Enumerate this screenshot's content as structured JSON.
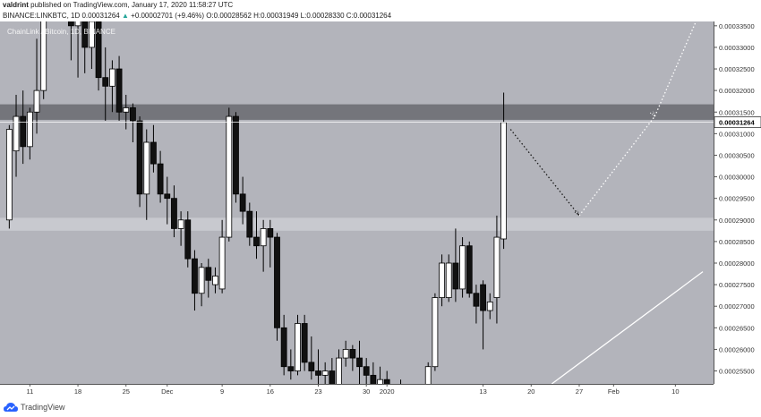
{
  "header": {
    "author": "valdrint",
    "published_text": "published on TradingView.com, January 17, 2020 11:58:27 UTC",
    "symbol": "BINANCE:LINKBTC, 1D",
    "last": "0.00031264",
    "change_arrow": "▲",
    "change": "+0.00002701 (+9.46%)",
    "ohlc": "O:0.00028562 H:0.00031949 L:0.00028330 C:0.00031264"
  },
  "watermark": "ChainLink / Bitcoin, 1D, BINANCE",
  "footer": {
    "brand": "TradingView"
  },
  "colors": {
    "background": "#b3b4bb",
    "up": "#ffffff",
    "down": "#111111",
    "zone_dark": "#6d6e74",
    "zone_light": "#cfd0d6"
  },
  "chart_data": {
    "type": "candlestick",
    "ylim": [
      0.000252,
      0.000336
    ],
    "y_ticks": [
      "0.00033500",
      "0.00033000",
      "0.00032500",
      "0.00032000",
      "0.00031500",
      "0.00031000",
      "0.00030500",
      "0.00030000",
      "0.00029500",
      "0.00029000",
      "0.00028500",
      "0.00028000",
      "0.00027500",
      "0.00027000",
      "0.00026500",
      "0.00026000",
      "0.00025500"
    ],
    "x_ticks": [
      {
        "label": "11",
        "day": 3
      },
      {
        "label": "18",
        "day": 10
      },
      {
        "label": "25",
        "day": 17
      },
      {
        "label": "Dec",
        "day": 23
      },
      {
        "label": "9",
        "day": 31
      },
      {
        "label": "16",
        "day": 38
      },
      {
        "label": "23",
        "day": 45
      },
      {
        "label": "30",
        "day": 52
      },
      {
        "label": "2020",
        "day": 55
      },
      {
        "label": "13",
        "day": 69
      },
      {
        "label": "20",
        "day": 76
      },
      {
        "label": "27",
        "day": 83
      },
      {
        "label": "Feb",
        "day": 88
      },
      {
        "label": "10",
        "day": 97
      }
    ],
    "last_price": {
      "label": "0.00031264",
      "value": 0.00031264
    },
    "zones": [
      {
        "from": 0.0003132,
        "to": 0.0003168,
        "style": "dark"
      },
      {
        "from": 0.0002875,
        "to": 0.0002905,
        "style": "light"
      }
    ],
    "candles": [
      {
        "day": 0,
        "o": 0.00029,
        "h": 0.000312,
        "l": 0.000288,
        "c": 0.000311
      },
      {
        "day": 1,
        "o": 0.000306,
        "h": 0.000319,
        "l": 0.0003,
        "c": 0.000314
      },
      {
        "day": 2,
        "o": 0.000314,
        "h": 0.00032,
        "l": 0.000303,
        "c": 0.000307
      },
      {
        "day": 3,
        "o": 0.000307,
        "h": 0.000316,
        "l": 0.000304,
        "c": 0.000315
      },
      {
        "day": 4,
        "o": 0.000315,
        "h": 0.000332,
        "l": 0.00031,
        "c": 0.00032
      },
      {
        "day": 5,
        "o": 0.00032,
        "h": 0.000342,
        "l": 0.000318,
        "c": 0.00034
      },
      {
        "day": 9,
        "o": 0.00034,
        "h": 0.000345,
        "l": 0.000327,
        "c": 0.000335
      },
      {
        "day": 10,
        "o": 0.000335,
        "h": 0.00034,
        "l": 0.000323,
        "c": 0.000338
      },
      {
        "day": 11,
        "o": 0.000338,
        "h": 0.000342,
        "l": 0.000324,
        "c": 0.00033
      },
      {
        "day": 12,
        "o": 0.00033,
        "h": 0.000337,
        "l": 0.000325,
        "c": 0.000336
      },
      {
        "day": 13,
        "o": 0.000336,
        "h": 0.000338,
        "l": 0.00032,
        "c": 0.000323
      },
      {
        "day": 14,
        "o": 0.000323,
        "h": 0.00033,
        "l": 0.000313,
        "c": 0.000321
      },
      {
        "day": 15,
        "o": 0.000321,
        "h": 0.000327,
        "l": 0.000315,
        "c": 0.000325
      },
      {
        "day": 16,
        "o": 0.000325,
        "h": 0.000328,
        "l": 0.000313,
        "c": 0.000315
      },
      {
        "day": 17,
        "o": 0.000315,
        "h": 0.000319,
        "l": 0.000311,
        "c": 0.000316
      },
      {
        "day": 18,
        "o": 0.000316,
        "h": 0.000317,
        "l": 0.000308,
        "c": 0.000313
      },
      {
        "day": 19,
        "o": 0.000313,
        "h": 0.000314,
        "l": 0.000293,
        "c": 0.000296
      },
      {
        "day": 20,
        "o": 0.000296,
        "h": 0.000311,
        "l": 0.00029,
        "c": 0.000308
      },
      {
        "day": 21,
        "o": 0.000308,
        "h": 0.000312,
        "l": 0.000301,
        "c": 0.000303
      },
      {
        "day": 22,
        "o": 0.000303,
        "h": 0.000306,
        "l": 0.000294,
        "c": 0.000296
      },
      {
        "day": 23,
        "o": 0.000296,
        "h": 0.0003,
        "l": 0.000289,
        "c": 0.000295
      },
      {
        "day": 24,
        "o": 0.000295,
        "h": 0.000298,
        "l": 0.000286,
        "c": 0.000288
      },
      {
        "day": 25,
        "o": 0.000288,
        "h": 0.000292,
        "l": 0.000284,
        "c": 0.00029
      },
      {
        "day": 26,
        "o": 0.00029,
        "h": 0.000292,
        "l": 0.000279,
        "c": 0.000281
      },
      {
        "day": 27,
        "o": 0.000281,
        "h": 0.000283,
        "l": 0.000269,
        "c": 0.000273
      },
      {
        "day": 28,
        "o": 0.000273,
        "h": 0.00028,
        "l": 0.00027,
        "c": 0.000279
      },
      {
        "day": 29,
        "o": 0.000279,
        "h": 0.000281,
        "l": 0.000272,
        "c": 0.000276
      },
      {
        "day": 30,
        "o": 0.000275,
        "h": 0.000279,
        "l": 0.000273,
        "c": 0.000277
      },
      {
        "day": 31,
        "o": 0.000274,
        "h": 0.00029,
        "l": 0.000273,
        "c": 0.000286
      },
      {
        "day": 32,
        "o": 0.000286,
        "h": 0.000316,
        "l": 0.000285,
        "c": 0.000314
      },
      {
        "day": 33,
        "o": 0.000314,
        "h": 0.000315,
        "l": 0.000294,
        "c": 0.000296
      },
      {
        "day": 34,
        "o": 0.000296,
        "h": 0.0003,
        "l": 0.000289,
        "c": 0.000292
      },
      {
        "day": 35,
        "o": 0.000292,
        "h": 0.000294,
        "l": 0.000284,
        "c": 0.000286
      },
      {
        "day": 36,
        "o": 0.000286,
        "h": 0.000292,
        "l": 0.000281,
        "c": 0.000284
      },
      {
        "day": 37,
        "o": 0.000284,
        "h": 0.00029,
        "l": 0.000278,
        "c": 0.000288
      },
      {
        "day": 38,
        "o": 0.000288,
        "h": 0.00029,
        "l": 0.000279,
        "c": 0.000286
      },
      {
        "day": 39,
        "o": 0.000286,
        "h": 0.000287,
        "l": 0.000262,
        "c": 0.000265
      },
      {
        "day": 40,
        "o": 0.000265,
        "h": 0.000268,
        "l": 0.000254,
        "c": 0.000256
      },
      {
        "day": 41,
        "o": 0.000256,
        "h": 0.00026,
        "l": 0.000253,
        "c": 0.000255
      },
      {
        "day": 42,
        "o": 0.000255,
        "h": 0.000268,
        "l": 0.000254,
        "c": 0.000266
      },
      {
        "day": 43,
        "o": 0.000266,
        "h": 0.000268,
        "l": 0.000255,
        "c": 0.000257
      },
      {
        "day": 44,
        "o": 0.000257,
        "h": 0.000263,
        "l": 0.000253,
        "c": 0.000255
      },
      {
        "day": 45,
        "o": 0.000255,
        "h": 0.00026,
        "l": 0.000251,
        "c": 0.000254
      },
      {
        "day": 46,
        "o": 0.000254,
        "h": 0.000257,
        "l": 0.000248,
        "c": 0.000255
      },
      {
        "day": 47,
        "o": 0.000255,
        "h": 0.000258,
        "l": 0.000249,
        "c": 0.000251
      },
      {
        "day": 48,
        "o": 0.000251,
        "h": 0.00026,
        "l": 0.00025,
        "c": 0.000258
      },
      {
        "day": 49,
        "o": 0.000258,
        "h": 0.000262,
        "l": 0.000256,
        "c": 0.00026
      },
      {
        "day": 50,
        "o": 0.00026,
        "h": 0.000261,
        "l": 0.000255,
        "c": 0.000258
      },
      {
        "day": 51,
        "o": 0.000258,
        "h": 0.000262,
        "l": 0.000252,
        "c": 0.000256
      },
      {
        "day": 52,
        "o": 0.000256,
        "h": 0.000258,
        "l": 0.00025,
        "c": 0.000254
      },
      {
        "day": 53,
        "o": 0.000254,
        "h": 0.000257,
        "l": 0.000249,
        "c": 0.00025
      },
      {
        "day": 54,
        "o": 0.00025,
        "h": 0.000256,
        "l": 0.000246,
        "c": 0.000253
      },
      {
        "day": 55,
        "o": 0.000253,
        "h": 0.000255,
        "l": 0.000247,
        "c": 0.00025
      },
      {
        "day": 56,
        "o": 0.00025,
        "h": 0.000252,
        "l": 0.000245,
        "c": 0.000249
      },
      {
        "day": 57,
        "o": 0.000249,
        "h": 0.000253,
        "l": 0.000245,
        "c": 0.000247
      },
      {
        "day": 58,
        "o": 0.000247,
        "h": 0.00025,
        "l": 0.000244,
        "c": 0.000248
      },
      {
        "day": 59,
        "o": 0.000248,
        "h": 0.000252,
        "l": 0.000246,
        "c": 0.000246
      },
      {
        "day": 60,
        "o": 0.000245,
        "h": 0.00025,
        "l": 0.000243,
        "c": 0.000249
      },
      {
        "day": 61,
        "o": 0.000249,
        "h": 0.000257,
        "l": 0.000248,
        "c": 0.000256
      },
      {
        "day": 62,
        "o": 0.000256,
        "h": 0.000273,
        "l": 0.000255,
        "c": 0.000272
      },
      {
        "day": 63,
        "o": 0.000272,
        "h": 0.000282,
        "l": 0.00027,
        "c": 0.00028
      },
      {
        "day": 64,
        "o": 0.000272,
        "h": 0.000282,
        "l": 0.000271,
        "c": 0.00028
      },
      {
        "day": 65,
        "o": 0.00028,
        "h": 0.000288,
        "l": 0.000271,
        "c": 0.000274
      },
      {
        "day": 66,
        "o": 0.000274,
        "h": 0.000286,
        "l": 0.000272,
        "c": 0.000284
      },
      {
        "day": 67,
        "o": 0.000284,
        "h": 0.000285,
        "l": 0.000272,
        "c": 0.000273
      },
      {
        "day": 68,
        "o": 0.000273,
        "h": 0.000275,
        "l": 0.000266,
        "c": 0.00027
      },
      {
        "day": 69,
        "o": 0.000275,
        "h": 0.000276,
        "l": 0.00026,
        "c": 0.000269
      },
      {
        "day": 70,
        "o": 0.000269,
        "h": 0.000273,
        "l": 0.000267,
        "c": 0.000271
      },
      {
        "day": 71,
        "o": 0.000272,
        "h": 0.000291,
        "l": 0.000266,
        "c": 0.000286
      },
      {
        "day": 72,
        "o": 0.0002856,
        "h": 0.0003195,
        "l": 0.0002833,
        "c": 0.0003126
      }
    ],
    "projection": {
      "style": "dotted",
      "points": [
        [
          73,
          0.000311
        ],
        [
          83,
          0.000291
        ],
        [
          94,
          0.000314
        ],
        [
          100,
          0.000336
        ]
      ]
    },
    "trendline": {
      "style": "solid",
      "points": [
        [
          79,
          0.000252
        ],
        [
          101,
          0.000278
        ]
      ]
    }
  }
}
